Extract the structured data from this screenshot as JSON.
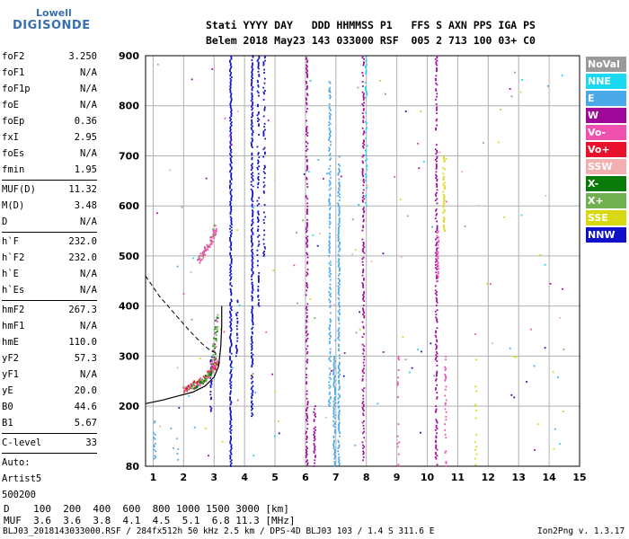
{
  "logo": {
    "line1": "Lowell",
    "line2": "DIGISONDE"
  },
  "header": {
    "line1": "Stati YYYY DAY   DDD HHMMSS P1   FFS S AXN PPS IGA PS",
    "line2": "Belem 2018 May23 143 033000 RSF  005 2 713 100 03+ C0"
  },
  "params": [
    {
      "k": "foF2",
      "v": "3.250"
    },
    {
      "k": "foF1",
      "v": "N/A"
    },
    {
      "k": "foF1p",
      "v": "N/A"
    },
    {
      "k": "foE",
      "v": "N/A"
    },
    {
      "k": "foEp",
      "v": "0.36"
    },
    {
      "k": "fxI",
      "v": "2.95"
    },
    {
      "k": "foEs",
      "v": "N/A"
    },
    {
      "k": "fmin",
      "v": "1.95"
    },
    {
      "k": "MUF(D)",
      "v": "11.32"
    },
    {
      "k": "M(D)",
      "v": "3.48"
    },
    {
      "k": "D",
      "v": "N/A"
    },
    {
      "k": "h`F",
      "v": "232.0"
    },
    {
      "k": "h`F2",
      "v": "232.0"
    },
    {
      "k": "h`E",
      "v": "N/A"
    },
    {
      "k": "h`Es",
      "v": "N/A"
    },
    {
      "k": "hmF2",
      "v": "267.3"
    },
    {
      "k": "hmF1",
      "v": "N/A"
    },
    {
      "k": "hmE",
      "v": "110.0"
    },
    {
      "k": "yF2",
      "v": "57.3"
    },
    {
      "k": "yF1",
      "v": "N/A"
    },
    {
      "k": "yE",
      "v": "20.0"
    },
    {
      "k": "B0",
      "v": "44.6"
    },
    {
      "k": "B1",
      "v": "5.67"
    },
    {
      "k": "C-level",
      "v": "33"
    }
  ],
  "auto": {
    "l1": "Auto:",
    "l2": "Artist5",
    "l3": "500200"
  },
  "legend": [
    {
      "label": "NoVal",
      "color": "#9a9a9a"
    },
    {
      "label": "NNE",
      "color": "#19d9f0"
    },
    {
      "label": "E",
      "color": "#4aa8e8"
    },
    {
      "label": "W",
      "color": "#a0089a"
    },
    {
      "label": "Vo-",
      "color": "#f050b0"
    },
    {
      "label": "Vo+",
      "color": "#e8102a"
    },
    {
      "label": "SSW",
      "color": "#f2b0b0"
    },
    {
      "label": "X-",
      "color": "#0a7a0a"
    },
    {
      "label": "X+",
      "color": "#70b050"
    },
    {
      "label": "SSE",
      "color": "#d8d810"
    },
    {
      "label": "NNW",
      "color": "#1010c8"
    }
  ],
  "dtable": {
    "row1": "D    100  200  400  600  800 1000 1500 3000 [km]",
    "row2": "MUF  3.6  3.6  3.8  4.1  4.5  5.1  6.8 11.3 [MHz]"
  },
  "footer": {
    "left": "BLJ03_2018143033000.RSF / 284fx512h 50 kHz 2.5 km / DPS-4D BLJ03 103 / 1.4 S 311.6 E",
    "right": "Ion2Png v. 1.3.17"
  },
  "chart_data": {
    "type": "scatter",
    "title": "",
    "xlabel": "",
    "ylabel": "",
    "x_unit": "MHz",
    "y_unit": "km",
    "xlim": [
      0.75,
      15
    ],
    "ylim": [
      80,
      900
    ],
    "xticks": [
      1,
      2,
      3,
      4,
      5,
      6,
      7,
      8,
      9,
      10,
      11,
      12,
      13,
      14,
      15
    ],
    "yticks": [
      80,
      200,
      300,
      400,
      500,
      600,
      700,
      800,
      900
    ],
    "grid": true,
    "legend_position": "right",
    "traces": [
      {
        "name": "O-trace F2",
        "color": "#e8102a",
        "x": [
          2.0,
          2.2,
          2.4,
          2.6,
          2.8,
          2.95,
          3.05,
          3.12
        ],
        "y": [
          232,
          238,
          245,
          252,
          262,
          272,
          282,
          292
        ]
      },
      {
        "name": "X-trace F2",
        "color": "#0a7a0a",
        "x": [
          2.3,
          2.5,
          2.7,
          2.9,
          3.0,
          3.05,
          3.1
        ],
        "y": [
          236,
          243,
          252,
          268,
          300,
          340,
          385
        ]
      },
      {
        "name": "multi-hop",
        "color": "#f050b0",
        "x": [
          2.5,
          2.6,
          2.75,
          2.9,
          3.0,
          3.05
        ],
        "y": [
          490,
          500,
          515,
          530,
          545,
          560
        ]
      }
    ],
    "profile_curve": {
      "color": "#000000",
      "x": [
        0.75,
        1.3,
        1.8,
        2.3,
        2.7,
        3.0,
        3.15,
        3.22,
        3.25,
        3.25
      ],
      "y": [
        205,
        212,
        220,
        228,
        240,
        258,
        280,
        320,
        360,
        400
      ]
    },
    "profile_dashed": {
      "color": "#000000",
      "x": [
        0.75,
        1.2,
        1.7,
        2.2,
        2.6,
        2.9,
        3.15
      ],
      "y": [
        460,
        420,
        385,
        350,
        325,
        310,
        305
      ]
    }
  }
}
